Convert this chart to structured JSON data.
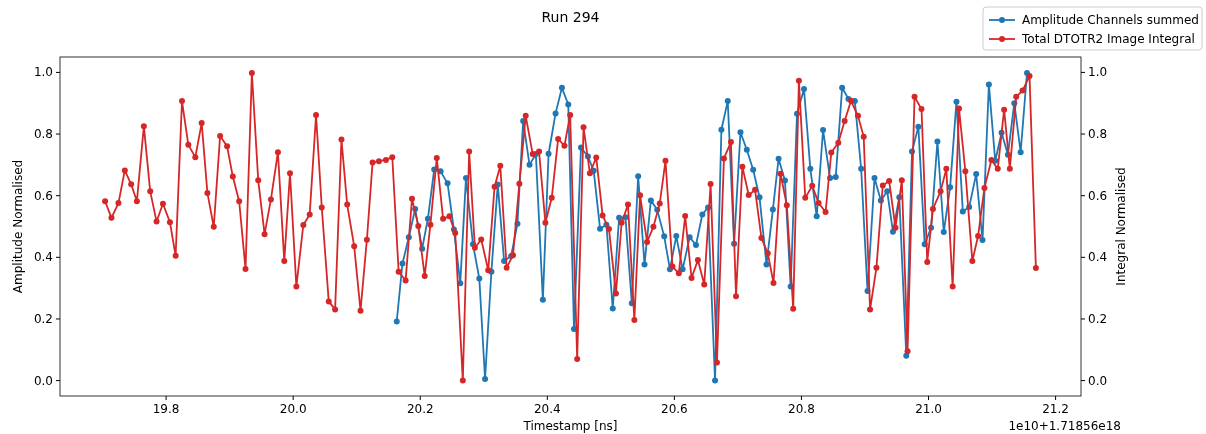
{
  "chart_data": {
    "type": "line",
    "title": "Run 294",
    "xlabel": "Timestamp [ns]",
    "ylabel": "Amplitude Normalised",
    "y2label": "Integral Normalised",
    "annotations": [
      "1e10+1.71856e18"
    ],
    "xlim": [
      19.633,
      21.24
    ],
    "ylim": [
      -0.05,
      1.05
    ],
    "y2lim": [
      -0.05,
      1.05
    ],
    "xticks": [
      19.8,
      {
        "value": 20,
        "label": "20.0"
      },
      20.2,
      20.4,
      20.6,
      20.8,
      {
        "value": 21,
        "label": "21.0"
      },
      21.2
    ],
    "yticks": [
      {
        "value": 0,
        "label": "0.0"
      },
      0.2,
      0.4,
      0.6,
      0.8,
      {
        "value": 1,
        "label": "1.0"
      }
    ],
    "y2ticks": [
      {
        "value": 0,
        "label": "0.0"
      },
      0.2,
      0.4,
      0.6,
      0.8,
      {
        "value": 1,
        "label": "1.0"
      }
    ],
    "marker": "circle",
    "line_style": "solid",
    "legend": "top right",
    "grid": false,
    "series": [
      {
        "name": "Amplitude Channels summed",
        "color": "#1f77b4",
        "x": [
          20.163,
          20.172,
          20.182,
          20.192,
          20.203,
          20.212,
          20.222,
          20.232,
          20.243,
          20.253,
          20.263,
          20.272,
          20.283,
          20.293,
          20.302,
          20.312,
          20.322,
          20.332,
          20.343,
          20.353,
          20.362,
          20.372,
          20.382,
          20.393,
          20.402,
          20.413,
          20.423,
          20.433,
          20.442,
          20.453,
          20.464,
          20.473,
          20.483,
          20.493,
          20.503,
          20.513,
          20.523,
          20.533,
          20.543,
          20.553,
          20.563,
          20.573,
          20.584,
          20.593,
          20.603,
          20.613,
          20.624,
          20.634,
          20.644,
          20.653,
          20.664,
          20.674,
          20.684,
          20.694,
          20.704,
          20.714,
          20.724,
          20.734,
          20.745,
          20.755,
          20.764,
          20.774,
          20.783,
          20.793,
          20.804,
          20.814,
          20.824,
          20.834,
          20.845,
          20.854,
          20.864,
          20.874,
          20.884,
          20.894,
          20.904,
          20.915,
          20.925,
          20.935,
          20.944,
          20.954,
          20.965,
          20.974,
          20.984,
          20.994,
          21.004,
          21.014,
          21.024,
          21.034,
          21.044,
          21.054,
          21.064,
          21.075,
          21.085,
          21.095,
          21.105,
          21.115,
          21.125,
          21.135,
          21.145,
          21.155
        ],
        "values": [
          0.192,
          0.38,
          0.465,
          0.557,
          0.428,
          0.525,
          0.685,
          0.679,
          0.64,
          0.49,
          0.316,
          0.657,
          0.442,
          0.331,
          0.005,
          0.353,
          0.636,
          0.388,
          0.404,
          0.509,
          0.842,
          0.7,
          0.735,
          0.262,
          0.736,
          0.867,
          0.95,
          0.896,
          0.167,
          0.756,
          0.727,
          0.681,
          0.493,
          0.506,
          0.234,
          0.528,
          0.53,
          0.251,
          0.663,
          0.377,
          0.584,
          0.554,
          0.468,
          0.361,
          0.469,
          0.361,
          0.465,
          0.44,
          0.539,
          0.562,
          0.0,
          0.814,
          0.907,
          0.444,
          0.806,
          0.749,
          0.684,
          0.595,
          0.377,
          0.555,
          0.72,
          0.649,
          0.305,
          0.866,
          0.946,
          0.687,
          0.533,
          0.813,
          0.657,
          0.661,
          0.95,
          0.914,
          0.907,
          0.687,
          0.291,
          0.657,
          0.584,
          0.614,
          0.483,
          0.595,
          0.081,
          0.743,
          0.824,
          0.442,
          0.496,
          0.776,
          0.482,
          0.627,
          0.905,
          0.549,
          0.563,
          0.67,
          0.456,
          0.961,
          0.713,
          0.804,
          0.733,
          0.9,
          0.741,
          0.998
        ]
      },
      {
        "name": "Total DTOTR2 Image Integral",
        "color": "#d62728",
        "axis": "y2",
        "x": [
          19.704,
          19.714,
          19.725,
          19.735,
          19.745,
          19.754,
          19.765,
          19.775,
          19.785,
          19.795,
          19.806,
          19.815,
          19.825,
          19.835,
          19.846,
          19.856,
          19.865,
          19.875,
          19.885,
          19.896,
          19.905,
          19.915,
          19.925,
          19.935,
          19.945,
          19.955,
          19.965,
          19.976,
          19.986,
          19.995,
          20.005,
          20.016,
          20.026,
          20.036,
          20.045,
          20.056,
          20.066,
          20.076,
          20.085,
          20.096,
          20.106,
          20.116,
          20.125,
          20.135,
          20.146,
          20.156,
          20.166,
          20.177,
          20.187,
          20.197,
          20.207,
          20.216,
          20.226,
          20.236,
          20.246,
          20.255,
          20.267,
          20.277,
          20.286,
          20.296,
          20.307,
          20.317,
          20.326,
          20.336,
          20.346,
          20.356,
          20.366,
          20.377,
          20.387,
          20.397,
          20.407,
          20.417,
          20.427,
          20.436,
          20.447,
          20.457,
          20.467,
          20.477,
          20.487,
          20.497,
          20.508,
          20.517,
          20.527,
          20.537,
          20.546,
          20.557,
          20.567,
          20.577,
          20.586,
          20.597,
          20.607,
          20.617,
          20.627,
          20.637,
          20.647,
          20.657,
          20.667,
          20.678,
          20.689,
          20.697,
          20.707,
          20.717,
          20.727,
          20.737,
          20.747,
          20.756,
          20.767,
          20.777,
          20.787,
          20.796,
          20.806,
          20.817,
          20.827,
          20.838,
          20.847,
          20.858,
          20.868,
          20.878,
          20.889,
          20.898,
          20.908,
          20.918,
          20.928,
          20.938,
          20.948,
          20.958,
          20.967,
          20.978,
          20.989,
          20.998,
          21.007,
          21.019,
          21.028,
          21.038,
          21.048,
          21.058,
          21.069,
          21.078,
          21.088,
          21.099,
          21.109,
          21.119,
          21.128,
          21.138,
          21.148,
          21.159,
          21.169
        ],
        "values": [
          0.582,
          0.528,
          0.576,
          0.682,
          0.637,
          0.582,
          0.825,
          0.614,
          0.516,
          0.574,
          0.514,
          0.405,
          0.907,
          0.765,
          0.725,
          0.836,
          0.609,
          0.499,
          0.794,
          0.76,
          0.662,
          0.582,
          0.362,
          0.998,
          0.65,
          0.475,
          0.588,
          0.741,
          0.388,
          0.673,
          0.305,
          0.505,
          0.539,
          0.862,
          0.562,
          0.257,
          0.231,
          0.782,
          0.571,
          0.436,
          0.227,
          0.457,
          0.708,
          0.712,
          0.716,
          0.725,
          0.353,
          0.325,
          0.59,
          0.502,
          0.339,
          0.506,
          0.722,
          0.525,
          0.533,
          0.479,
          0.0,
          0.743,
          0.431,
          0.458,
          0.358,
          0.629,
          0.697,
          0.366,
          0.407,
          0.639,
          0.859,
          0.735,
          0.743,
          0.512,
          0.593,
          0.784,
          0.762,
          0.862,
          0.07,
          0.822,
          0.673,
          0.724,
          0.536,
          0.492,
          0.283,
          0.512,
          0.571,
          0.197,
          0.601,
          0.45,
          0.499,
          0.575,
          0.713,
          0.37,
          0.348,
          0.534,
          0.333,
          0.391,
          0.312,
          0.638,
          0.059,
          0.721,
          0.774,
          0.274,
          0.694,
          0.602,
          0.619,
          0.463,
          0.413,
          0.317,
          0.671,
          0.569,
          0.233,
          0.973,
          0.593,
          0.632,
          0.576,
          0.547,
          0.74,
          0.772,
          0.842,
          0.908,
          0.859,
          0.791,
          0.231,
          0.366,
          0.633,
          0.648,
          0.496,
          0.65,
          0.095,
          0.921,
          0.881,
          0.385,
          0.557,
          0.614,
          0.687,
          0.305,
          0.883,
          0.679,
          0.388,
          0.469,
          0.625,
          0.716,
          0.687,
          0.879,
          0.687,
          0.921,
          0.941,
          0.988,
          0.365
        ]
      }
    ]
  }
}
